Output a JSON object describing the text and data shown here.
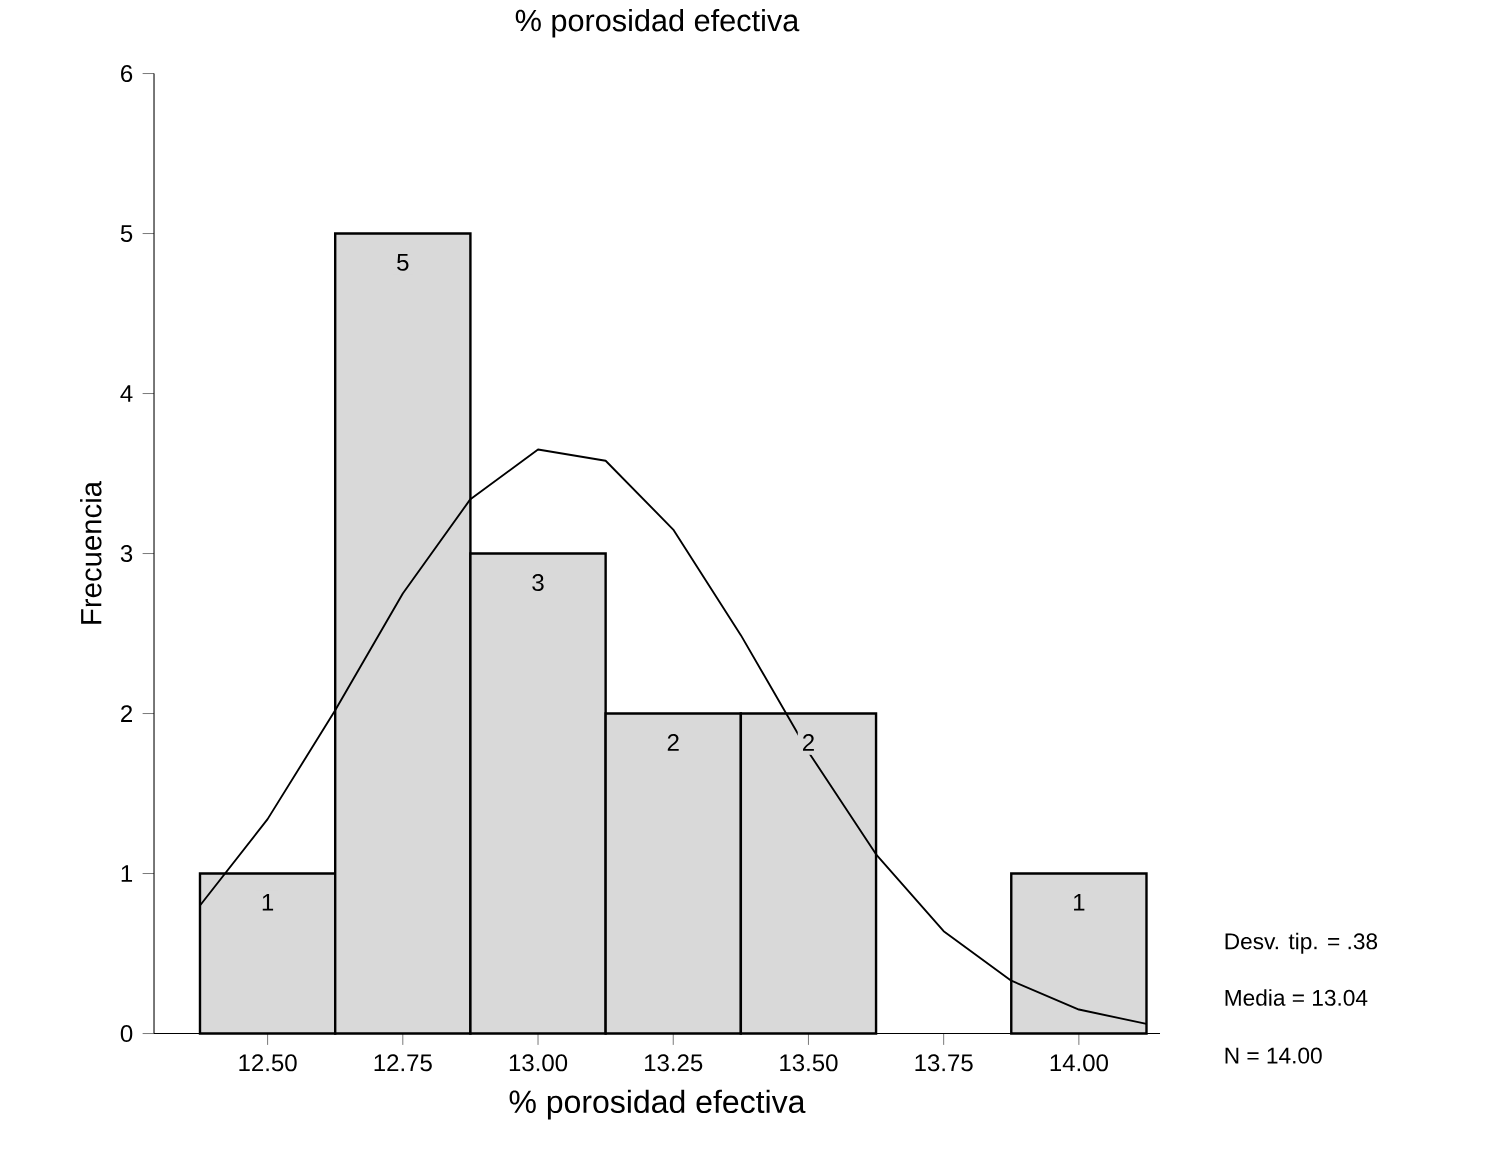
{
  "chart_data": {
    "type": "histogram",
    "title": "% porosidad efectiva",
    "xlabel": "% porosidad efectiva",
    "ylabel": "Frecuencia",
    "bins": [
      12.375,
      12.625,
      12.875,
      13.125,
      13.375,
      13.625,
      13.875,
      14.125
    ],
    "values": [
      1,
      5,
      3,
      2,
      2,
      0,
      1
    ],
    "value_labels": [
      "1",
      "5",
      "3",
      "2",
      "2",
      null,
      "1"
    ],
    "color": "#d9d9d9",
    "series": [
      {
        "type": "line",
        "color": "#000000",
        "x": [
          12.375,
          12.5,
          12.625,
          12.75,
          12.875,
          13.0,
          13.125,
          13.25,
          13.375,
          13.5,
          13.625,
          13.75,
          13.875,
          14.0,
          14.125
        ],
        "values": [
          0.8,
          1.34,
          2.02,
          2.75,
          3.34,
          3.65,
          3.58,
          3.15,
          2.49,
          1.76,
          1.12,
          0.64,
          0.33,
          0.15,
          0.06
        ]
      }
    ],
    "xlim": [
      12.29,
      14.15
    ],
    "ylim": [
      0,
      6
    ],
    "xticks": [
      {
        "value": 12.5,
        "label": "12.50"
      },
      {
        "value": 12.75,
        "label": "12.75"
      },
      {
        "value": 13.0,
        "label": "13.00"
      },
      {
        "value": 13.25,
        "label": "13.25"
      },
      {
        "value": 13.5,
        "label": "13.50"
      },
      {
        "value": 13.75,
        "label": "13.75"
      },
      {
        "value": 14.0,
        "label": "14.00"
      }
    ],
    "yticks": [
      0,
      1,
      2,
      3,
      4,
      5,
      6
    ],
    "annotations": [
      "Desv. tip. = .38",
      "Media = 13.04",
      "N = 14.00"
    ]
  }
}
